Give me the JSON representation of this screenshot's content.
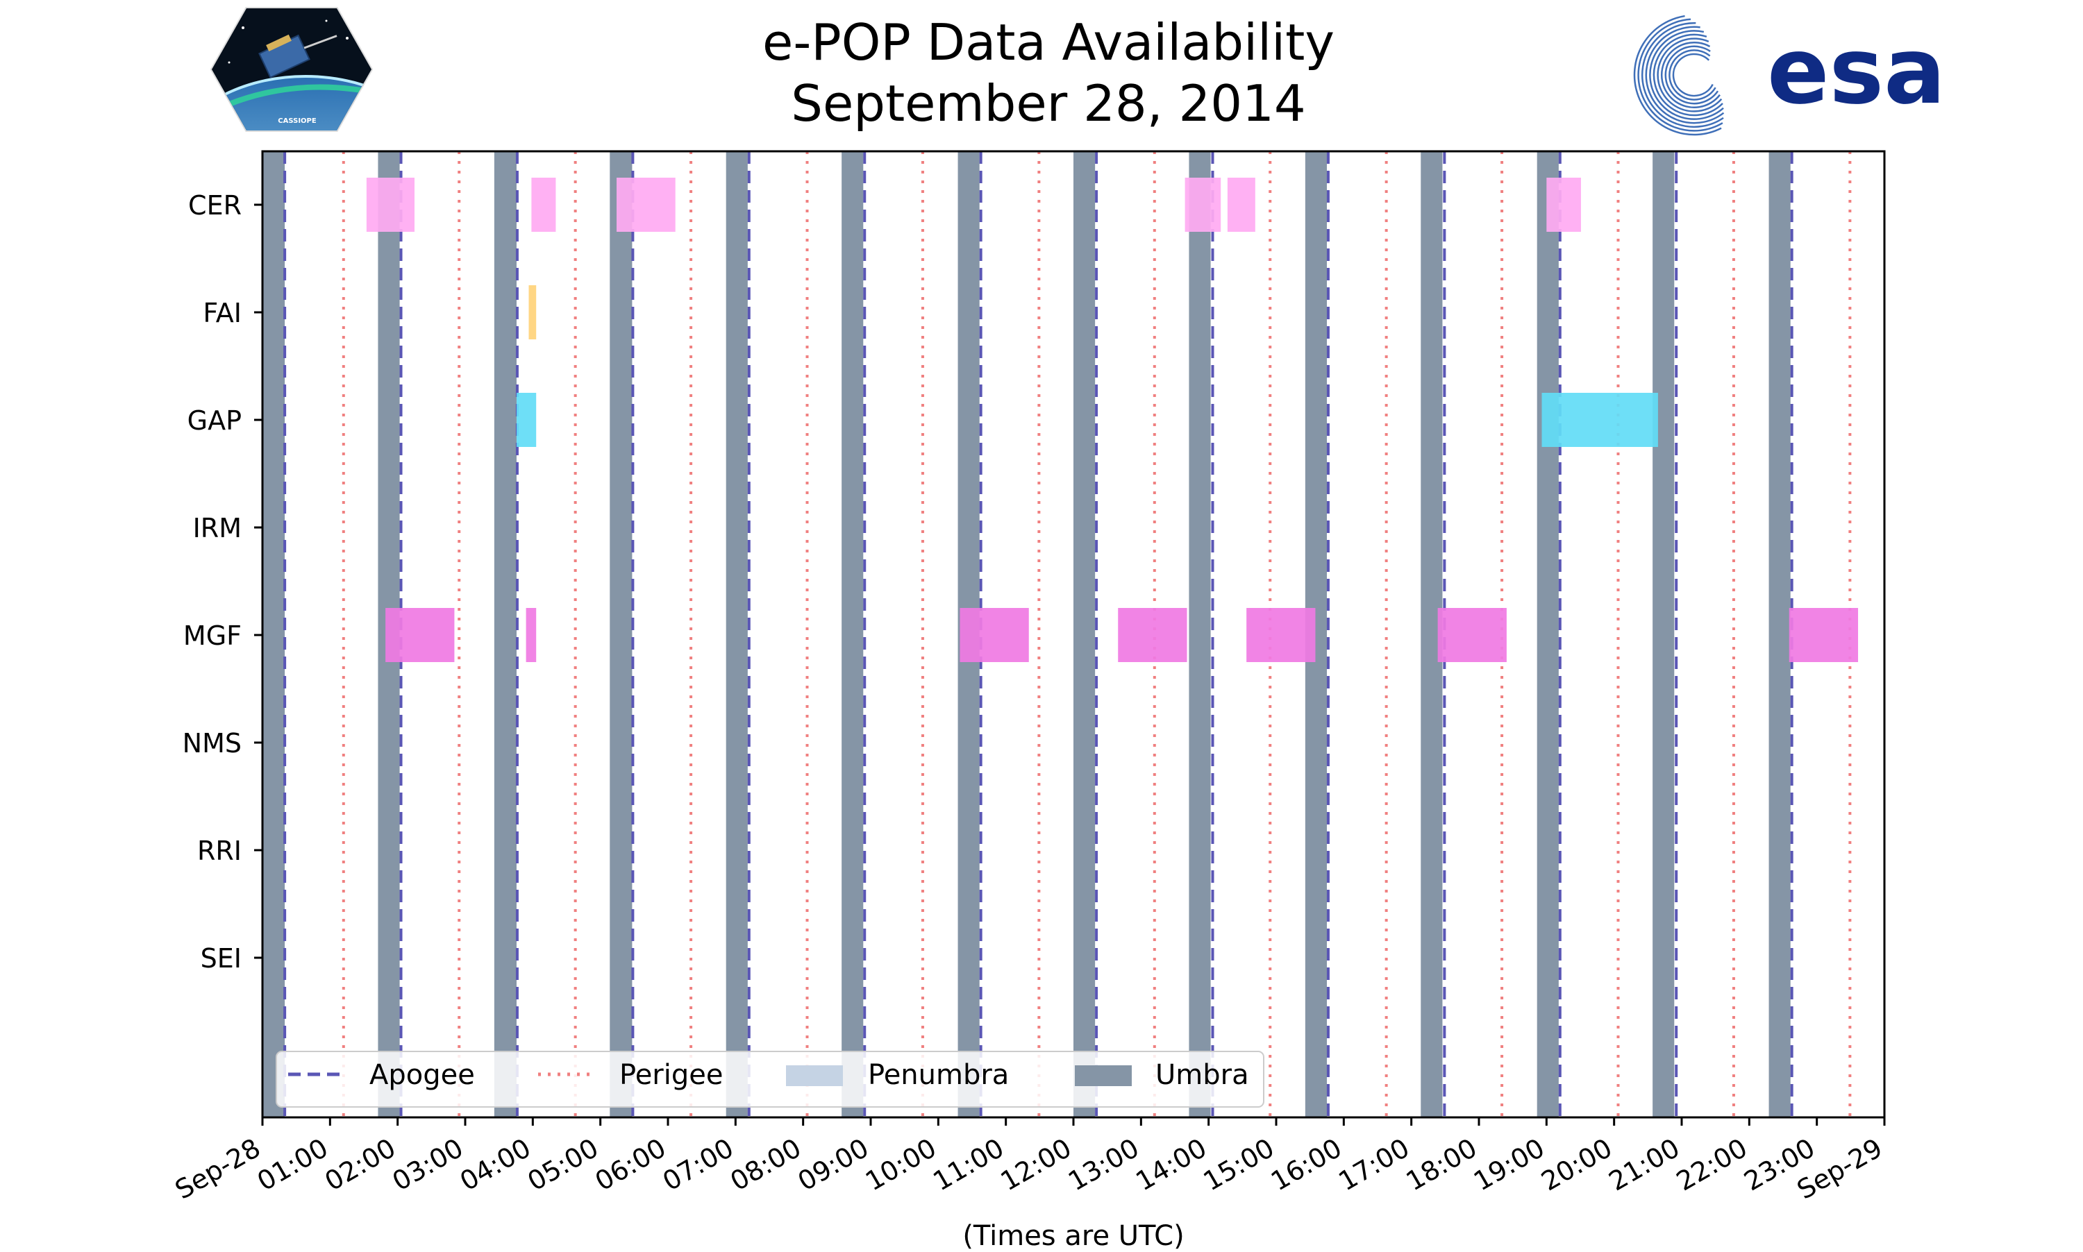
{
  "chart_data": {
    "type": "timeline",
    "title_line1": "e-POP Data Availability",
    "title_line2": "September 28, 2014",
    "xlabel": "(Times are UTC)",
    "xlim_hours": [
      0,
      24
    ],
    "x_ticks": [
      {
        "hour": 0,
        "label": "Sep-28"
      },
      {
        "hour": 1,
        "label": "01:00"
      },
      {
        "hour": 2,
        "label": "02:00"
      },
      {
        "hour": 3,
        "label": "03:00"
      },
      {
        "hour": 4,
        "label": "04:00"
      },
      {
        "hour": 5,
        "label": "05:00"
      },
      {
        "hour": 6,
        "label": "06:00"
      },
      {
        "hour": 7,
        "label": "07:00"
      },
      {
        "hour": 8,
        "label": "08:00"
      },
      {
        "hour": 9,
        "label": "09:00"
      },
      {
        "hour": 10,
        "label": "10:00"
      },
      {
        "hour": 11,
        "label": "11:00"
      },
      {
        "hour": 12,
        "label": "12:00"
      },
      {
        "hour": 13,
        "label": "13:00"
      },
      {
        "hour": 14,
        "label": "14:00"
      },
      {
        "hour": 15,
        "label": "15:00"
      },
      {
        "hour": 16,
        "label": "16:00"
      },
      {
        "hour": 17,
        "label": "17:00"
      },
      {
        "hour": 18,
        "label": "18:00"
      },
      {
        "hour": 19,
        "label": "19:00"
      },
      {
        "hour": 20,
        "label": "20:00"
      },
      {
        "hour": 21,
        "label": "21:00"
      },
      {
        "hour": 22,
        "label": "22:00"
      },
      {
        "hour": 23,
        "label": "23:00"
      },
      {
        "hour": 24,
        "label": "Sep-29"
      }
    ],
    "instruments": [
      "CER",
      "FAI",
      "GAP",
      "IRM",
      "MGF",
      "NMS",
      "RRI",
      "SEI"
    ],
    "umbra": [
      [
        0.0,
        0.33
      ],
      [
        1.71,
        2.03
      ],
      [
        3.43,
        3.76
      ],
      [
        5.14,
        5.47
      ],
      [
        6.86,
        7.18
      ],
      [
        8.57,
        8.89
      ],
      [
        10.29,
        10.61
      ],
      [
        12.0,
        12.32
      ],
      [
        13.71,
        14.03
      ],
      [
        15.43,
        15.75
      ],
      [
        17.14,
        17.46
      ],
      [
        18.86,
        19.18
      ],
      [
        20.57,
        20.89
      ],
      [
        22.29,
        22.61
      ]
    ],
    "apogee_hours": [
      0.33,
      2.05,
      3.77,
      5.48,
      7.2,
      8.91,
      10.63,
      12.34,
      14.06,
      15.77,
      17.49,
      19.2,
      20.92,
      22.63
    ],
    "perigee_hours": [
      1.2,
      2.91,
      4.63,
      6.34,
      8.06,
      9.77,
      11.49,
      13.2,
      14.91,
      16.63,
      18.34,
      20.06,
      21.77,
      23.49
    ],
    "colors": {
      "CER": "#ffaaf2",
      "FAI": "#ffd27a",
      "GAP": "#62dcf6",
      "MGF": "#f07ae3",
      "umbra": "#8595a6",
      "penumbra": "#c5d3e4",
      "apogee": "#5a56b5",
      "perigee": "#f08080"
    },
    "availability": [
      {
        "instrument": "CER",
        "start": 1.54,
        "end": 2.25
      },
      {
        "instrument": "CER",
        "start": 3.98,
        "end": 4.34
      },
      {
        "instrument": "CER",
        "start": 5.24,
        "end": 6.11
      },
      {
        "instrument": "CER",
        "start": 13.65,
        "end": 14.18
      },
      {
        "instrument": "CER",
        "start": 14.28,
        "end": 14.69
      },
      {
        "instrument": "CER",
        "start": 19.0,
        "end": 19.51
      },
      {
        "instrument": "FAI",
        "start": 3.94,
        "end": 4.05
      },
      {
        "instrument": "GAP",
        "start": 3.76,
        "end": 4.05
      },
      {
        "instrument": "GAP",
        "start": 18.93,
        "end": 20.65
      },
      {
        "instrument": "MGF",
        "start": 1.82,
        "end": 2.84
      },
      {
        "instrument": "MGF",
        "start": 3.9,
        "end": 4.05
      },
      {
        "instrument": "MGF",
        "start": 10.32,
        "end": 11.34
      },
      {
        "instrument": "MGF",
        "start": 12.66,
        "end": 13.68
      },
      {
        "instrument": "MGF",
        "start": 14.56,
        "end": 15.58
      },
      {
        "instrument": "MGF",
        "start": 17.39,
        "end": 18.41
      },
      {
        "instrument": "MGF",
        "start": 22.59,
        "end": 23.61
      }
    ],
    "legend": {
      "position": "lower-left",
      "entries": [
        {
          "label": "Apogee",
          "kind": "apogee"
        },
        {
          "label": "Perigee",
          "kind": "perigee"
        },
        {
          "label": "Penumbra",
          "kind": "penumbra"
        },
        {
          "label": "Umbra",
          "kind": "umbra"
        }
      ]
    }
  },
  "logos": {
    "cassiope_text": "CASSIOPE",
    "esa_text": "esa",
    "esa_color": "#0f2b84",
    "esa_swirl_color": "#3f6fb8"
  }
}
